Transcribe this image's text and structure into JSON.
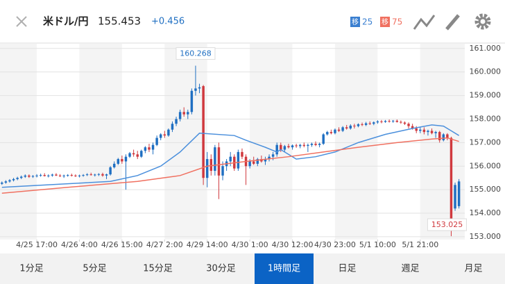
{
  "header": {
    "title": "米ドル/円",
    "price": "155.453",
    "change": "+0.456",
    "legend_prefix": "移"
  },
  "chart_data": {
    "type": "candlestick",
    "candles": [
      [
        155.25,
        155.35,
        155.2,
        155.3
      ],
      [
        155.3,
        155.4,
        155.25,
        155.35
      ],
      [
        155.35,
        155.45,
        155.3,
        155.4
      ],
      [
        155.4,
        155.5,
        155.35,
        155.45
      ],
      [
        155.45,
        155.55,
        155.4,
        155.5
      ],
      [
        155.5,
        155.6,
        155.45,
        155.55
      ],
      [
        155.55,
        155.65,
        155.5,
        155.6
      ],
      [
        155.6,
        155.65,
        155.5,
        155.55
      ],
      [
        155.55,
        155.62,
        155.5,
        155.58
      ],
      [
        155.58,
        155.66,
        155.52,
        155.6
      ],
      [
        155.6,
        155.68,
        155.55,
        155.62
      ],
      [
        155.62,
        155.7,
        155.56,
        155.58
      ],
      [
        155.58,
        155.65,
        155.52,
        155.6
      ],
      [
        155.6,
        155.68,
        155.55,
        155.64
      ],
      [
        155.64,
        155.7,
        155.58,
        155.6
      ],
      [
        155.6,
        155.66,
        155.54,
        155.58
      ],
      [
        155.58,
        155.64,
        155.5,
        155.6
      ],
      [
        155.6,
        155.66,
        155.55,
        155.62
      ],
      [
        155.62,
        155.68,
        155.56,
        155.6
      ],
      [
        155.6,
        155.65,
        155.54,
        155.58
      ],
      [
        155.58,
        155.64,
        155.52,
        155.6
      ],
      [
        155.6,
        155.66,
        155.55,
        155.62
      ],
      [
        155.62,
        155.7,
        155.58,
        155.65
      ],
      [
        155.65,
        155.72,
        155.6,
        155.62
      ],
      [
        155.62,
        155.68,
        155.56,
        155.64
      ],
      [
        155.64,
        155.7,
        155.58,
        155.66
      ],
      [
        155.66,
        155.72,
        155.55,
        155.6
      ],
      [
        155.6,
        155.68,
        155.45,
        155.65
      ],
      [
        155.65,
        156.0,
        155.6,
        155.95
      ],
      [
        155.95,
        156.2,
        155.9,
        156.1
      ],
      [
        156.1,
        156.35,
        156.05,
        156.3
      ],
      [
        156.3,
        156.45,
        156.1,
        156.2
      ],
      [
        156.2,
        156.5,
        155.0,
        156.4
      ],
      [
        156.4,
        156.6,
        156.35,
        156.55
      ],
      [
        156.55,
        156.7,
        156.4,
        156.5
      ],
      [
        156.5,
        156.65,
        156.3,
        156.4
      ],
      [
        156.4,
        156.7,
        156.35,
        156.65
      ],
      [
        156.65,
        156.85,
        156.55,
        156.8
      ],
      [
        156.8,
        156.95,
        156.6,
        156.7
      ],
      [
        156.7,
        157.0,
        156.5,
        156.9
      ],
      [
        156.9,
        157.3,
        156.85,
        157.2
      ],
      [
        157.2,
        157.4,
        157.1,
        157.35
      ],
      [
        157.35,
        157.5,
        157.2,
        157.3
      ],
      [
        157.3,
        157.6,
        157.25,
        157.55
      ],
      [
        157.55,
        157.9,
        157.45,
        157.8
      ],
      [
        157.8,
        158.1,
        157.7,
        158.0
      ],
      [
        158.0,
        158.4,
        157.9,
        158.3
      ],
      [
        158.3,
        158.5,
        158.1,
        158.2
      ],
      [
        158.2,
        158.4,
        158.0,
        158.3
      ],
      [
        158.3,
        159.3,
        158.2,
        159.2
      ],
      [
        159.2,
        160.268,
        159.0,
        159.3
      ],
      [
        159.3,
        159.5,
        159.1,
        159.35
      ],
      [
        159.4,
        159.45,
        155.2,
        155.5
      ],
      [
        155.5,
        156.6,
        155.1,
        156.3
      ],
      [
        156.3,
        156.5,
        155.6,
        155.8
      ],
      [
        155.8,
        156.9,
        155.6,
        156.8
      ],
      [
        156.8,
        157.0,
        154.6,
        155.6
      ],
      [
        155.6,
        156.2,
        155.4,
        156.0
      ],
      [
        156.0,
        156.3,
        155.8,
        156.2
      ],
      [
        156.2,
        156.6,
        156.0,
        156.4
      ],
      [
        156.4,
        156.5,
        155.8,
        155.9
      ],
      [
        155.9,
        156.7,
        155.8,
        156.6
      ],
      [
        156.6,
        156.75,
        156.3,
        156.4
      ],
      [
        156.4,
        156.5,
        155.2,
        156.0
      ],
      [
        156.0,
        156.3,
        155.9,
        156.2
      ],
      [
        156.2,
        156.4,
        156.05,
        156.1
      ],
      [
        156.1,
        156.35,
        156.0,
        156.3
      ],
      [
        156.3,
        156.45,
        156.15,
        156.2
      ],
      [
        156.2,
        156.4,
        156.05,
        156.3
      ],
      [
        156.3,
        156.5,
        156.2,
        156.4
      ],
      [
        156.4,
        156.6,
        156.25,
        156.5
      ],
      [
        156.5,
        157.0,
        156.4,
        156.9
      ],
      [
        156.9,
        157.0,
        156.6,
        156.7
      ],
      [
        156.7,
        156.9,
        156.6,
        156.85
      ],
      [
        156.85,
        156.95,
        156.75,
        156.8
      ],
      [
        156.8,
        156.92,
        156.7,
        156.88
      ],
      [
        156.88,
        156.95,
        156.78,
        156.85
      ],
      [
        156.85,
        156.95,
        156.76,
        156.9
      ],
      [
        156.9,
        157.0,
        156.8,
        156.86
      ],
      [
        156.86,
        156.96,
        156.6,
        156.9
      ],
      [
        156.9,
        157.0,
        156.82,
        156.95
      ],
      [
        156.95,
        157.05,
        156.85,
        156.9
      ],
      [
        156.9,
        157.0,
        156.8,
        156.95
      ],
      [
        156.95,
        157.4,
        156.9,
        157.35
      ],
      [
        157.35,
        157.5,
        157.3,
        157.45
      ],
      [
        157.45,
        157.55,
        157.35,
        157.4
      ],
      [
        157.4,
        157.6,
        157.35,
        157.55
      ],
      [
        157.55,
        157.65,
        157.45,
        157.5
      ],
      [
        157.5,
        157.7,
        157.45,
        157.65
      ],
      [
        157.65,
        157.75,
        157.55,
        157.6
      ],
      [
        157.6,
        157.78,
        157.55,
        157.72
      ],
      [
        157.72,
        157.8,
        157.6,
        157.7
      ],
      [
        157.7,
        157.82,
        157.65,
        157.78
      ],
      [
        157.78,
        157.85,
        157.7,
        157.75
      ],
      [
        157.75,
        157.88,
        157.7,
        157.82
      ],
      [
        157.82,
        157.9,
        157.75,
        157.8
      ],
      [
        157.8,
        157.9,
        157.74,
        157.86
      ],
      [
        157.86,
        157.95,
        157.8,
        157.9
      ],
      [
        157.9,
        157.96,
        157.82,
        157.88
      ],
      [
        157.88,
        157.96,
        157.84,
        157.92
      ],
      [
        157.92,
        157.98,
        157.85,
        157.9
      ],
      [
        157.9,
        157.96,
        157.84,
        157.93
      ],
      [
        157.93,
        157.98,
        157.85,
        157.88
      ],
      [
        157.88,
        157.94,
        157.8,
        157.85
      ],
      [
        157.85,
        157.9,
        157.75,
        157.8
      ],
      [
        157.8,
        157.86,
        157.6,
        157.7
      ],
      [
        157.7,
        157.8,
        157.55,
        157.6
      ],
      [
        157.6,
        157.7,
        157.4,
        157.5
      ],
      [
        157.5,
        157.65,
        157.4,
        157.55
      ],
      [
        157.55,
        157.65,
        157.35,
        157.45
      ],
      [
        157.45,
        157.55,
        157.3,
        157.5
      ],
      [
        157.5,
        157.6,
        157.35,
        157.4
      ],
      [
        157.4,
        157.5,
        157.2,
        157.45
      ],
      [
        157.45,
        157.5,
        157.0,
        157.1
      ],
      [
        157.1,
        157.4,
        157.05,
        157.35
      ],
      [
        157.35,
        157.4,
        157.1,
        157.2
      ],
      [
        157.2,
        157.25,
        153.025,
        153.7
      ],
      [
        154.2,
        155.3,
        154.1,
        155.2
      ],
      [
        154.3,
        155.45,
        154.2,
        155.35
      ]
    ],
    "up_color": "#1f6fc2",
    "down_color": "#d0393e",
    "series": [
      {
        "name": "25",
        "color": "#4a8fdc",
        "x": [
          0,
          17,
          28,
          35,
          41,
          46,
          51,
          60,
          63,
          68,
          71,
          72,
          76,
          81,
          86,
          92,
          99,
          106,
          111,
          114,
          116,
          118
        ],
        "values": [
          155.1,
          155.25,
          155.35,
          155.6,
          156.0,
          156.6,
          157.4,
          157.3,
          157.1,
          156.8,
          156.6,
          156.7,
          156.3,
          156.4,
          156.6,
          157.0,
          157.35,
          157.6,
          157.75,
          157.7,
          157.5,
          157.3
        ]
      },
      {
        "name": "75",
        "color": "#f07060",
        "x": [
          0,
          17,
          35,
          46,
          53,
          63,
          74,
          83,
          92,
          102,
          111,
          115,
          118
        ],
        "values": [
          154.85,
          155.1,
          155.35,
          155.6,
          156.0,
          156.2,
          156.4,
          156.6,
          156.8,
          157.0,
          157.15,
          157.2,
          157.05
        ]
      }
    ],
    "ylim": [
      152.88,
      161.2
    ],
    "yticks": [
      {
        "value": 153,
        "label": "153.000"
      },
      {
        "value": 154,
        "label": "154.000"
      },
      {
        "value": 155,
        "label": "155.000"
      },
      {
        "value": 156,
        "label": "156.000"
      },
      {
        "value": 157,
        "label": "157.000"
      },
      {
        "value": 158,
        "label": "158.000"
      },
      {
        "value": 159,
        "label": "159.000"
      },
      {
        "value": 160,
        "label": "160.000"
      },
      {
        "value": 161,
        "label": "161.000"
      }
    ],
    "xlim": [
      -0.5,
      119.5
    ],
    "xticks": [
      {
        "value": 9,
        "label": "4/25 17:00"
      },
      {
        "value": 20,
        "label": "4/26 4:00"
      },
      {
        "value": 31,
        "label": "4/26 15:00"
      },
      {
        "value": 42,
        "label": "4/27 2:00"
      },
      {
        "value": 53,
        "label": "4/29 14:00"
      },
      {
        "value": 64,
        "label": "4/30 1:00"
      },
      {
        "value": 75,
        "label": "4/30 12:00"
      },
      {
        "value": 86,
        "label": "4/30 23:00"
      },
      {
        "value": 97,
        "label": "5/1 10:00"
      },
      {
        "value": 108,
        "label": "5/1 21:00"
      }
    ],
    "grid": true,
    "high_label": {
      "candle": 50
    },
    "low_label": {
      "candle": 116
    }
  },
  "tabs": {
    "items": [
      "1分足",
      "5分足",
      "15分足",
      "30分足",
      "1時間足",
      "日足",
      "週足",
      "月足"
    ],
    "active": 4
  }
}
